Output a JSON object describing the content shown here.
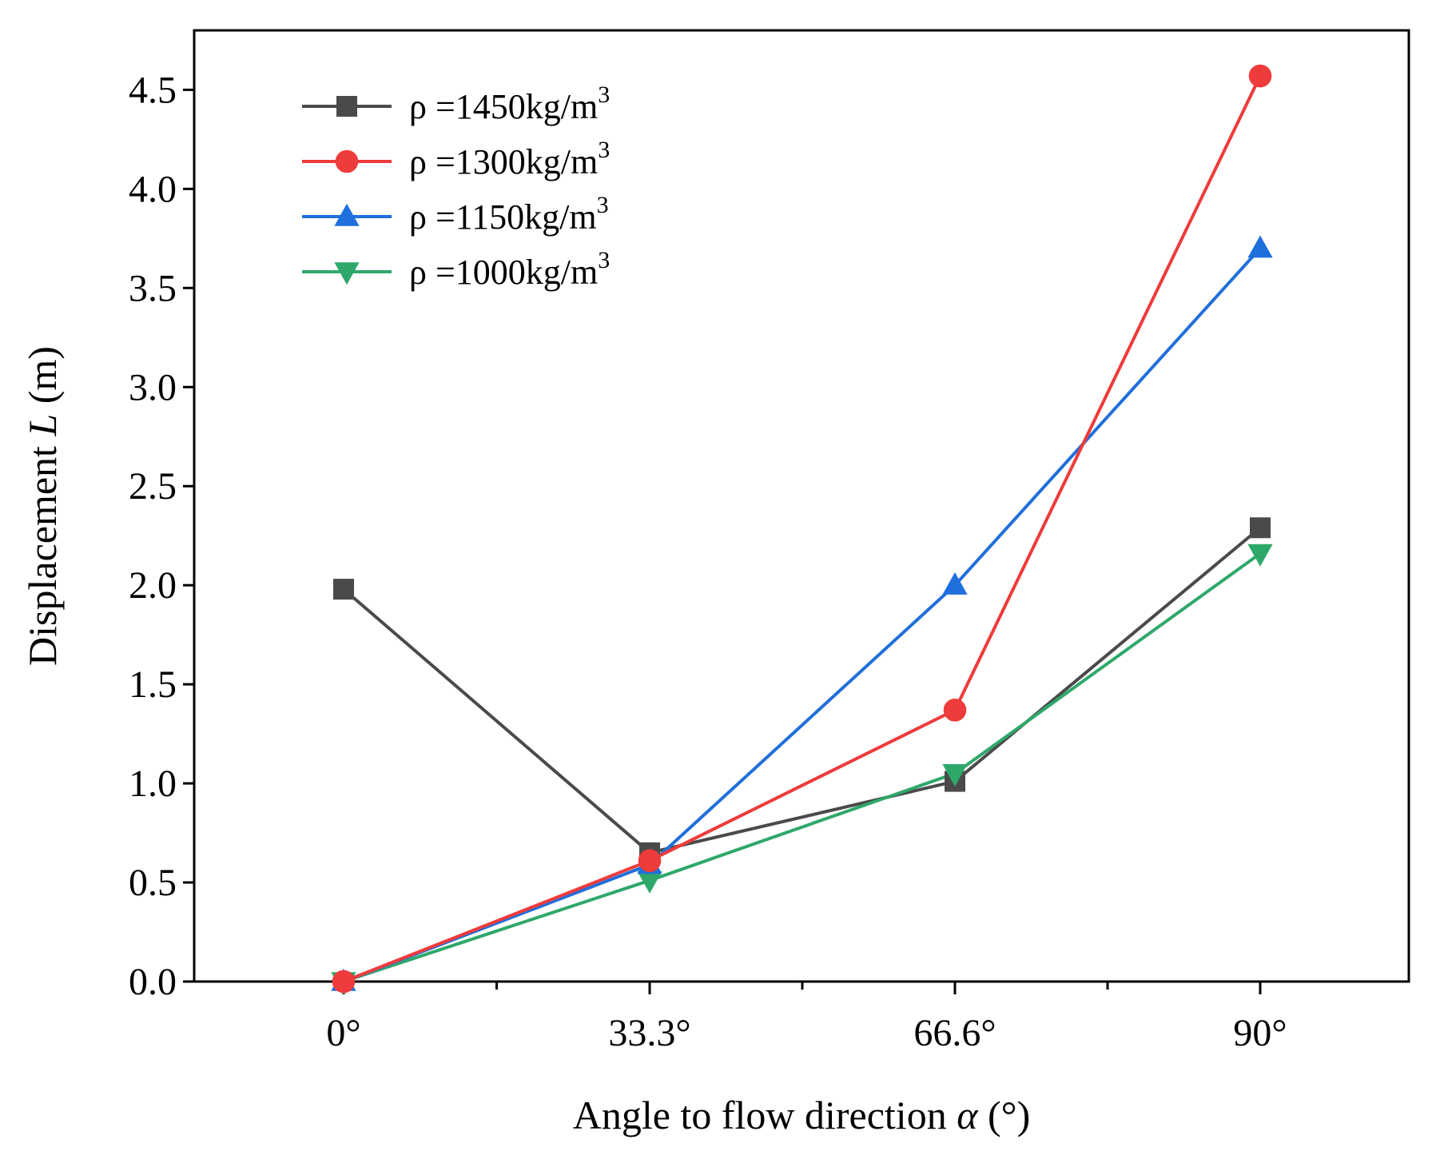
{
  "chart_data": {
    "type": "line",
    "title": "",
    "categories": [
      "0°",
      "33.3°",
      "66.6°",
      "90°"
    ],
    "xlabel": "Angle to flow direction α (°)",
    "xlabel_parts": {
      "pre": "Angle to flow direction ",
      "sym": "α",
      "post": " (°)"
    },
    "ylabel": "Displacement L (m)",
    "ylabel_parts": {
      "pre": "Displacement ",
      "sym": "L",
      "post": " (m)"
    },
    "ylim": [
      0,
      4.8
    ],
    "yticks": [
      0.0,
      0.5,
      1.0,
      1.5,
      2.0,
      2.5,
      3.0,
      3.5,
      4.0,
      4.5
    ],
    "ytick_labels": [
      "0.0",
      "0.5",
      "1.0",
      "1.5",
      "2.0",
      "2.5",
      "3.0",
      "3.5",
      "4.0",
      "4.5"
    ],
    "grid": false,
    "legend_position": "top-left",
    "series": [
      {
        "name": "ρ=1450kg/m3",
        "label_main": "ρ =1450kg/m",
        "label_sup": "3",
        "color": "#4a4a4a",
        "marker": "square",
        "values": [
          1.98,
          0.65,
          1.01,
          2.29
        ]
      },
      {
        "name": "ρ=1300kg/m3",
        "label_main": "ρ =1300kg/m",
        "label_sup": "3",
        "color": "#ee3b3b",
        "marker": "circle",
        "values": [
          0.0,
          0.61,
          1.37,
          4.57
        ]
      },
      {
        "name": "ρ=1150kg/m3",
        "label_main": "ρ =1150kg/m",
        "label_sup": "3",
        "color": "#1f6fdc",
        "marker": "triangle-up",
        "values": [
          0.0,
          0.59,
          2.0,
          3.7
        ]
      },
      {
        "name": "ρ=1000kg/m3",
        "label_main": "ρ =1000kg/m",
        "label_sup": "3",
        "color": "#2ea86a",
        "marker": "triangle-down",
        "values": [
          0.0,
          0.51,
          1.05,
          2.16
        ]
      }
    ]
  }
}
